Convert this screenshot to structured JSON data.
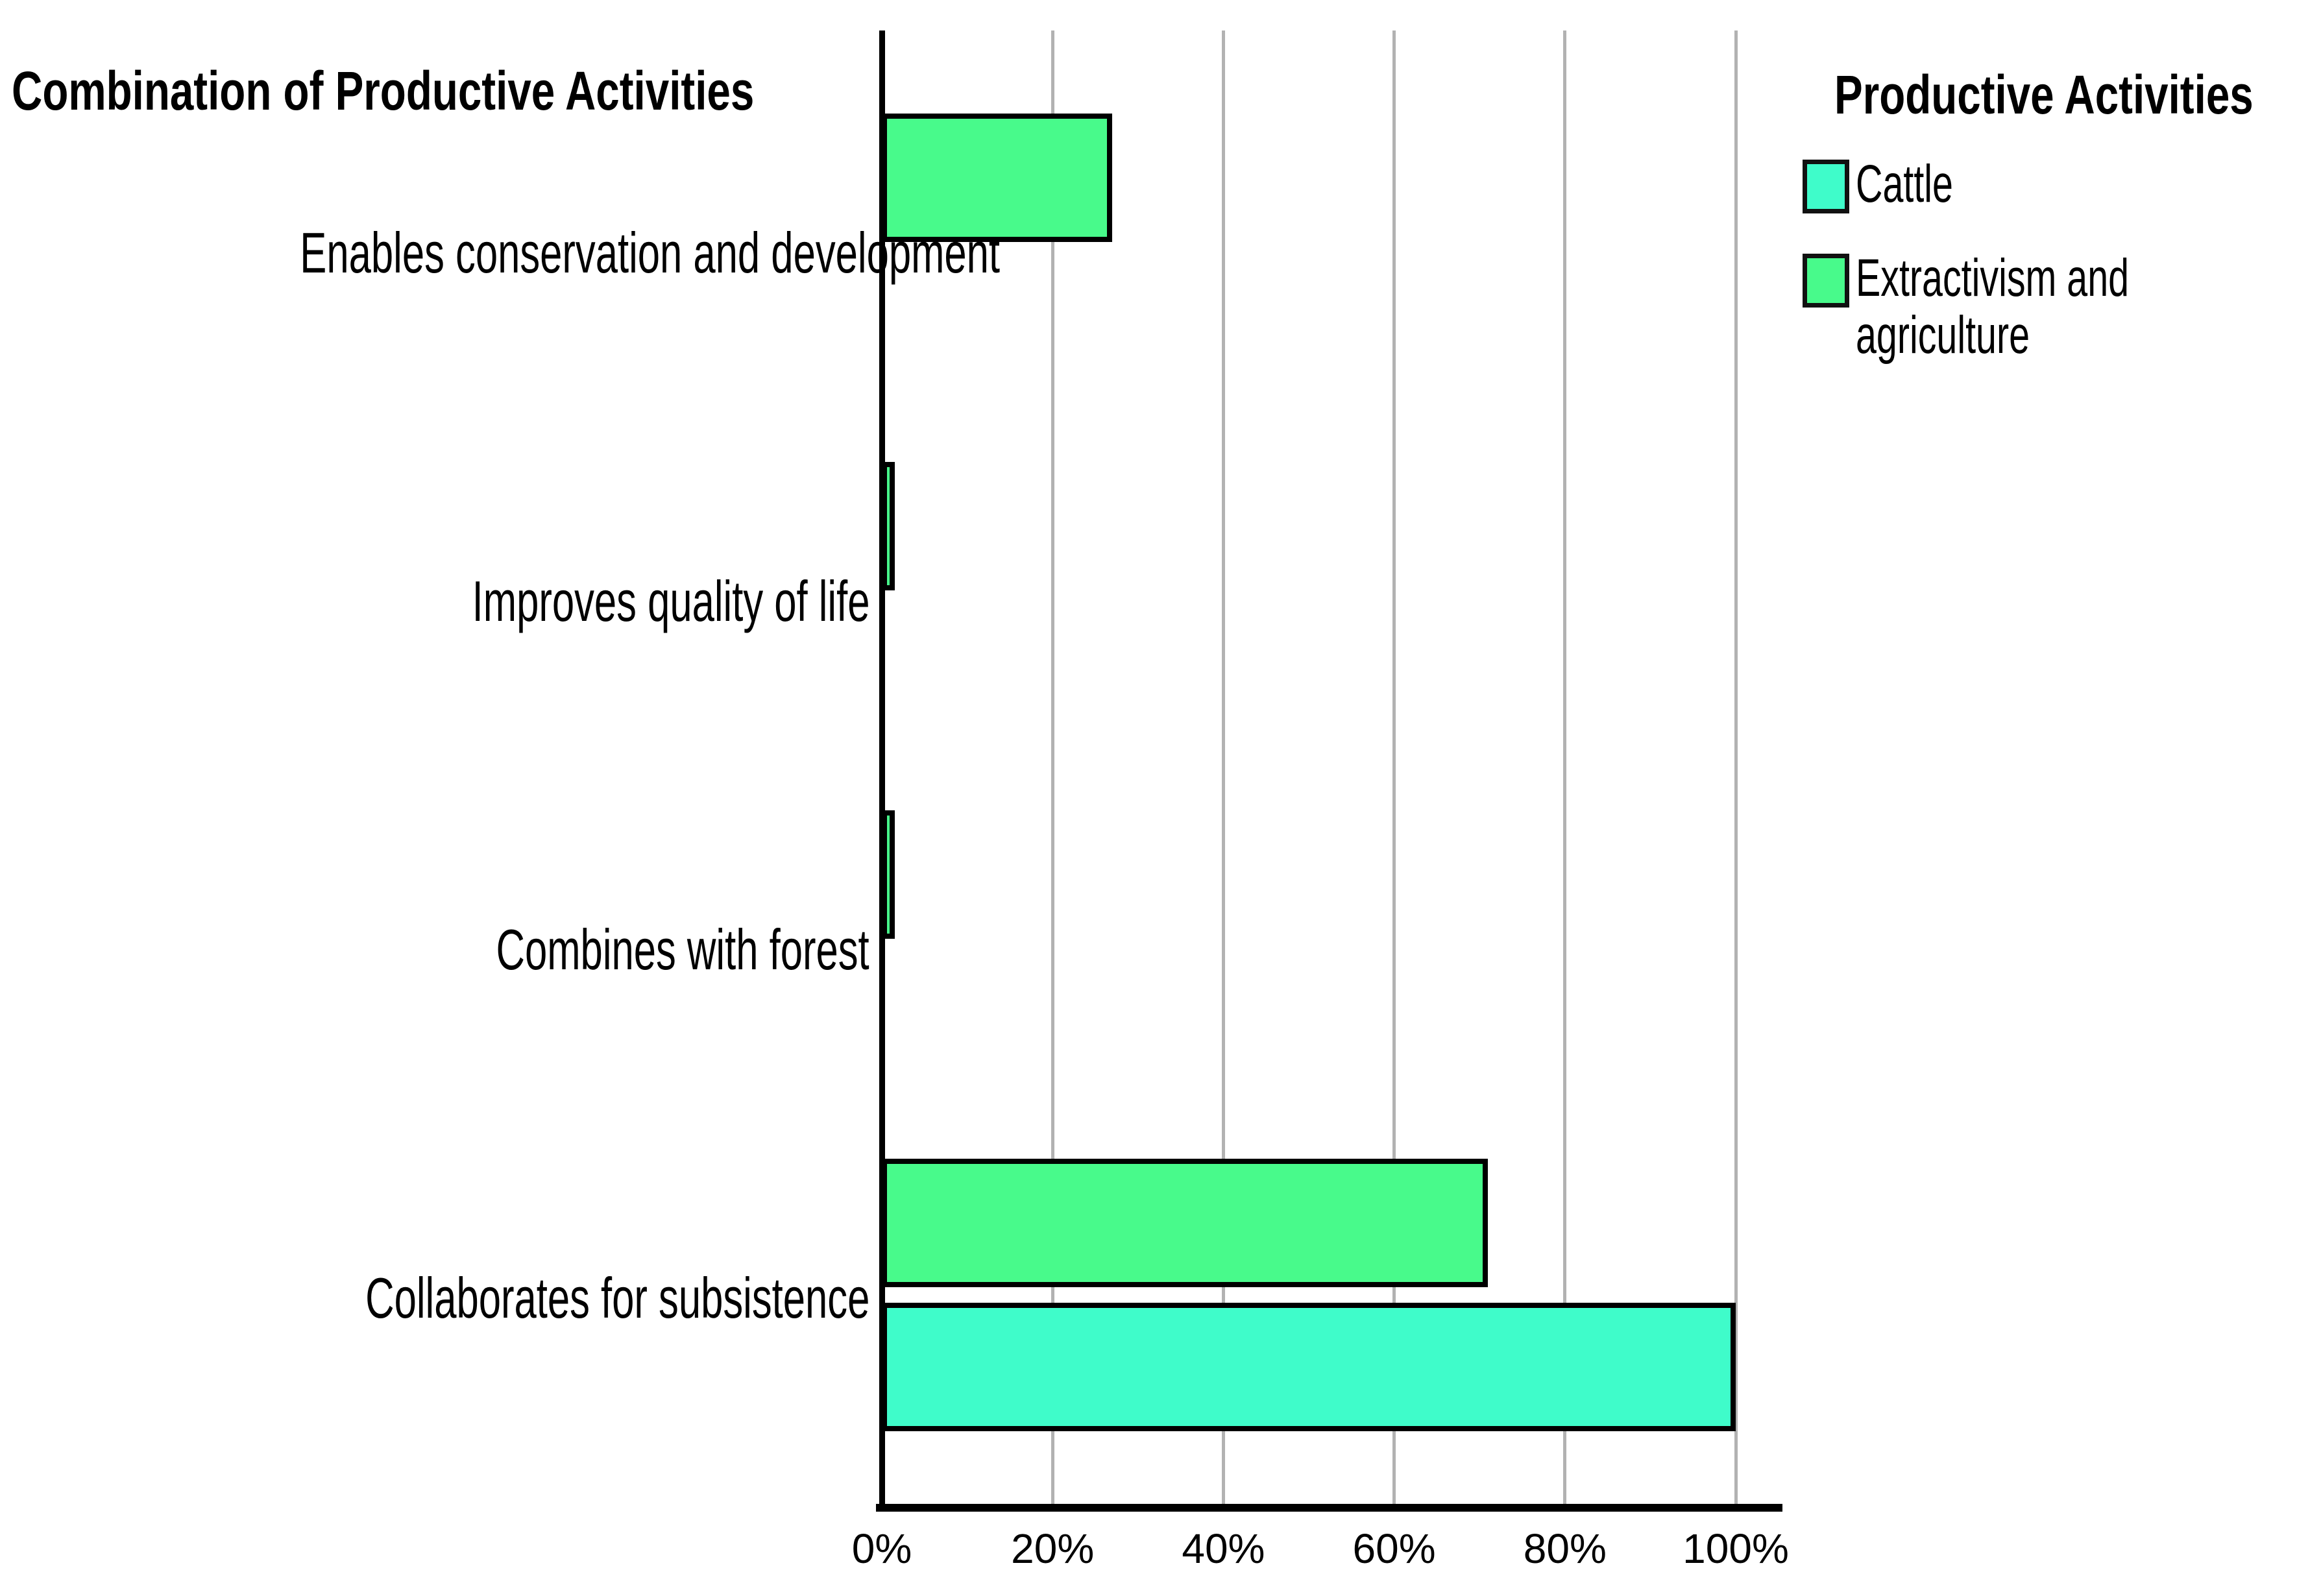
{
  "title": "Combination of Productive Activities",
  "legend": {
    "title": "Productive Activities",
    "items": [
      {
        "label": "Cattle",
        "color": "#3ffcca"
      },
      {
        "label": "Extractivism and\nagriculture",
        "color": "#48fa8b"
      }
    ]
  },
  "colors": {
    "cattle": "#3ffcca",
    "extractivism": "#48fa8b",
    "bar_border": "#000000",
    "gridline": "#b2b2b2"
  },
  "chart_data": {
    "type": "bar",
    "orientation": "horizontal",
    "title": "Combination of Productive Activities",
    "legend_title": "Productive Activities",
    "categories": [
      "Enables conservation and development",
      "Improves quality of life",
      "Combines with forest",
      "Collaborates for subsistence"
    ],
    "series": [
      {
        "name": "Cattle",
        "color": "#3ffcca",
        "values": [
          0,
          0,
          0,
          100
        ]
      },
      {
        "name": "Extractivism and agriculture",
        "color": "#48fa8b",
        "values": [
          27,
          1.3,
          1.3,
          71
        ]
      }
    ],
    "x_ticks": [
      "0%",
      "20%",
      "40%",
      "60%",
      "80%",
      "100%"
    ],
    "xlim": [
      0,
      100
    ],
    "xlabel": "",
    "ylabel": "Combination of Productive Activities",
    "grid": true,
    "legend_position": "top-right"
  }
}
